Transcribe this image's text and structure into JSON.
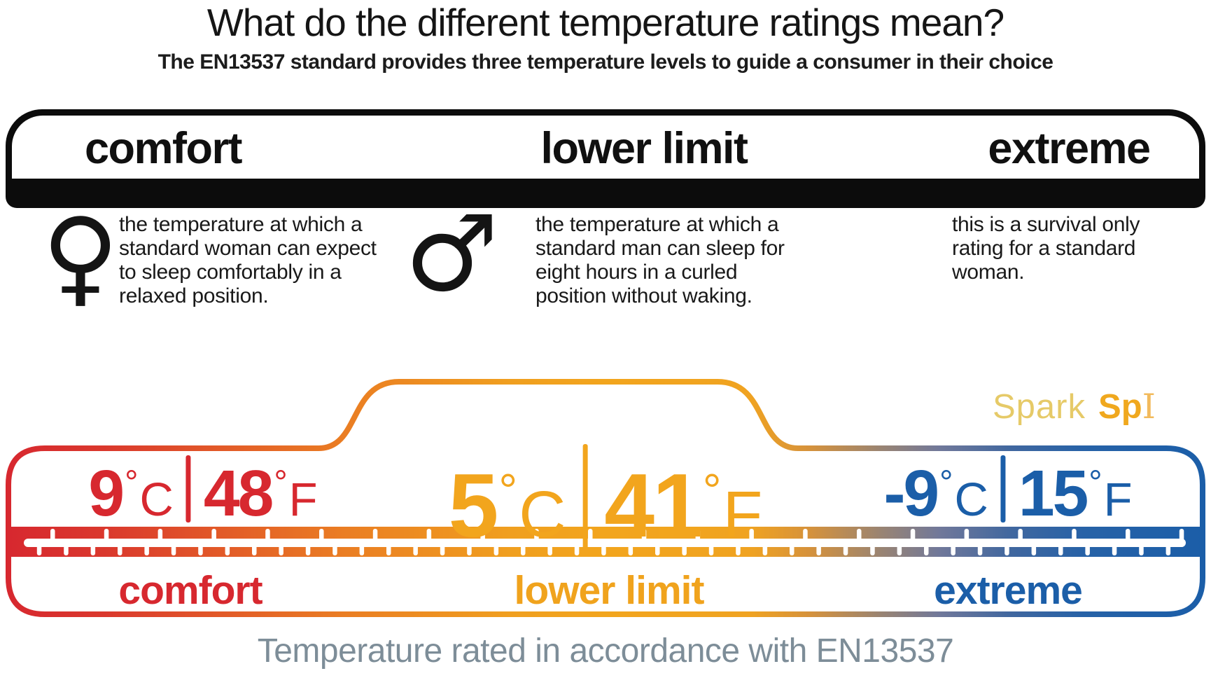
{
  "title": "What do the different temperature ratings mean?",
  "subtitle": "The EN13537 standard provides three temperature levels to guide a consumer in their choice",
  "header": {
    "columns": [
      "comfort",
      "lower limit",
      "extreme"
    ]
  },
  "ratings": [
    {
      "id": "comfort",
      "icon": "female-symbol",
      "symbol": "♀",
      "description": "the temperature at which a\nstandard woman can expect\nto sleep comfortably in a\nrelaxed position."
    },
    {
      "id": "lower-limit",
      "icon": "male-symbol",
      "symbol": "♂",
      "description": "the temperature at which a\nstandard man can sleep for\neight hours in a curled\nposition without waking."
    },
    {
      "id": "extreme",
      "description": "this is a survival only\nrating for a standard\nwoman."
    }
  ],
  "thermometer": {
    "brand": {
      "light": "Spark",
      "bold": "Sp",
      "serif": "I"
    },
    "degree": "°",
    "scales": [
      {
        "label": "comfort",
        "celsius": "9",
        "unit_c": "C",
        "fahrenheit": "48",
        "unit_f": "F",
        "color": "#d7282f"
      },
      {
        "label": "lower limit",
        "celsius": "5",
        "unit_c": "C",
        "fahrenheit": "41",
        "unit_f": "F",
        "color": "#f2a51d"
      },
      {
        "label": "extreme",
        "celsius": "-9",
        "unit_c": "C",
        "fahrenheit": "15",
        "unit_f": "F",
        "color": "#1b5ea8"
      }
    ]
  },
  "footer": "Temperature rated in accordance with EN13537",
  "colors": {
    "red": "#d7282f",
    "gold": "#f2a51d",
    "blue": "#1b5ea8",
    "black_bar": "#0c0c0c",
    "footer_gray": "#7d8d98",
    "brand_light": "#e6ca68",
    "brand_bold": "#f0a81e"
  }
}
